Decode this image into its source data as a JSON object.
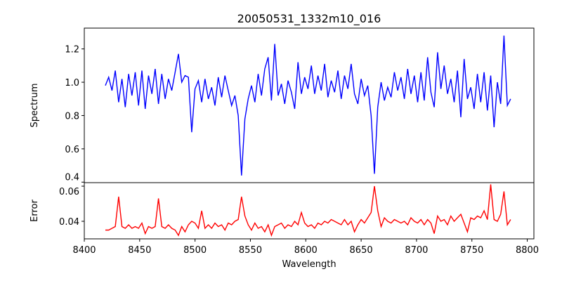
{
  "chart_data": [
    {
      "type": "line",
      "title": "20050531_1332m10_016",
      "xlabel": "",
      "ylabel": "Spectrum",
      "xlim": [
        8400,
        8806
      ],
      "ylim": [
        0.397,
        1.325
      ],
      "yticks": [
        0.4,
        0.6,
        0.8,
        1.0,
        1.2
      ],
      "ytick_labels": [
        "0.4",
        "0.6",
        "0.8",
        "1.0",
        "1.2"
      ],
      "color": "#0000ff",
      "wavelength_start": 8419,
      "wavelength_step": 3,
      "values": [
        0.98,
        1.03,
        0.95,
        1.07,
        0.88,
        1.02,
        0.85,
        1.05,
        0.92,
        1.06,
        0.86,
        1.07,
        0.84,
        1.04,
        0.93,
        1.08,
        0.87,
        1.05,
        0.9,
        1.02,
        0.95,
        1.06,
        1.17,
        1.0,
        1.04,
        1.03,
        0.7,
        0.96,
        1.01,
        0.88,
        1.02,
        0.9,
        0.97,
        0.86,
        1.03,
        0.91,
        1.04,
        0.95,
        0.86,
        0.92,
        0.8,
        0.44,
        0.78,
        0.9,
        0.98,
        0.88,
        1.05,
        0.92,
        1.08,
        1.15,
        0.89,
        1.23,
        0.92,
        0.99,
        0.87,
        1.01,
        0.94,
        0.84,
        1.12,
        0.93,
        1.03,
        0.96,
        1.1,
        0.93,
        1.04,
        0.95,
        1.11,
        0.91,
        1.01,
        0.94,
        1.07,
        0.9,
        1.04,
        0.96,
        1.11,
        0.93,
        0.87,
        1.02,
        0.92,
        0.98,
        0.8,
        0.45,
        0.85,
        1.0,
        0.89,
        0.97,
        0.91,
        1.06,
        0.95,
        1.03,
        0.9,
        1.08,
        0.93,
        1.04,
        0.88,
        1.06,
        0.89,
        1.15,
        0.94,
        0.85,
        1.18,
        0.96,
        1.1,
        0.93,
        1.02,
        0.88,
        1.07,
        0.79,
        1.14,
        0.9,
        0.97,
        0.84,
        1.05,
        0.88,
        1.06,
        0.83,
        1.04,
        0.73,
        1.0,
        0.87,
        1.28,
        0.86,
        0.9
      ]
    },
    {
      "type": "line",
      "title": "",
      "xlabel": "Wavelength",
      "ylabel": "Error",
      "xlim": [
        8400,
        8806
      ],
      "ylim": [
        0.03,
        0.062
      ],
      "xticks": [
        8400,
        8450,
        8500,
        8550,
        8600,
        8650,
        8700,
        8750,
        8800
      ],
      "xtick_labels": [
        "8400",
        "8450",
        "8500",
        "8550",
        "8600",
        "8650",
        "8700",
        "8750",
        "8800"
      ],
      "yticks": [
        0.04,
        0.06
      ],
      "ytick_labels": [
        "0.04",
        "0.06"
      ],
      "color": "#ff0000",
      "wavelength_start": 8419,
      "wavelength_step": 3,
      "values": [
        0.035,
        0.035,
        0.036,
        0.037,
        0.054,
        0.037,
        0.036,
        0.038,
        0.036,
        0.037,
        0.036,
        0.039,
        0.033,
        0.037,
        0.036,
        0.037,
        0.053,
        0.037,
        0.036,
        0.038,
        0.036,
        0.035,
        0.032,
        0.037,
        0.034,
        0.038,
        0.04,
        0.039,
        0.036,
        0.046,
        0.036,
        0.038,
        0.036,
        0.039,
        0.037,
        0.038,
        0.035,
        0.039,
        0.038,
        0.04,
        0.041,
        0.054,
        0.043,
        0.038,
        0.035,
        0.039,
        0.036,
        0.037,
        0.034,
        0.038,
        0.032,
        0.037,
        0.038,
        0.039,
        0.036,
        0.038,
        0.037,
        0.04,
        0.038,
        0.045,
        0.039,
        0.037,
        0.038,
        0.036,
        0.039,
        0.038,
        0.04,
        0.039,
        0.041,
        0.04,
        0.039,
        0.038,
        0.041,
        0.038,
        0.04,
        0.034,
        0.038,
        0.041,
        0.039,
        0.042,
        0.045,
        0.06,
        0.046,
        0.037,
        0.042,
        0.04,
        0.039,
        0.041,
        0.04,
        0.039,
        0.04,
        0.038,
        0.042,
        0.04,
        0.039,
        0.041,
        0.038,
        0.041,
        0.039,
        0.033,
        0.043,
        0.04,
        0.041,
        0.038,
        0.043,
        0.04,
        0.042,
        0.044,
        0.039,
        0.034,
        0.042,
        0.041,
        0.043,
        0.042,
        0.046,
        0.041,
        0.061,
        0.041,
        0.04,
        0.044,
        0.057,
        0.038,
        0.041
      ]
    }
  ]
}
